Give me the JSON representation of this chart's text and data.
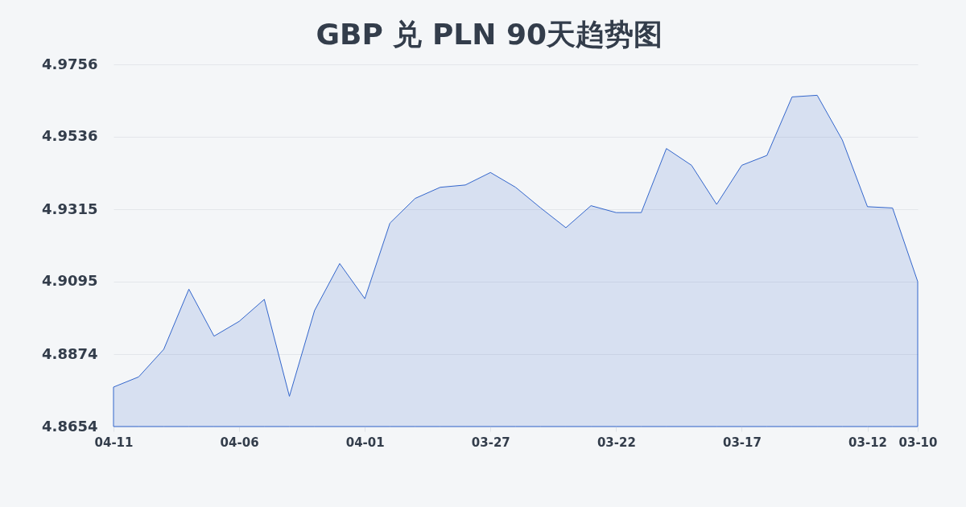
{
  "chart_data": {
    "type": "area",
    "title": "GBP 兑 PLN 90天趋势图",
    "categories": [
      "04-11",
      null,
      null,
      null,
      null,
      "04-06",
      null,
      null,
      null,
      null,
      "04-01",
      null,
      null,
      null,
      null,
      "03-27",
      null,
      null,
      null,
      null,
      "03-22",
      null,
      null,
      null,
      null,
      "03-17",
      null,
      null,
      null,
      null,
      "03-12",
      null,
      "03-10"
    ],
    "series": [
      {
        "color": "#3366cc",
        "values": [
          4.8774,
          4.8805,
          4.8889,
          4.9072,
          4.8929,
          4.8974,
          4.9041,
          4.8746,
          4.9007,
          4.915,
          4.9043,
          4.9273,
          4.9348,
          4.9382,
          4.9389,
          4.9427,
          4.9382,
          4.9319,
          4.9259,
          4.9326,
          4.9305,
          4.9305,
          4.95,
          4.9449,
          4.933,
          4.9449,
          4.9479,
          4.9657,
          4.9662,
          4.9526,
          4.9323,
          4.9319,
          4.9095
        ]
      }
    ],
    "ylim": [
      4.8654,
      4.9756
    ],
    "yticks": [
      4.8654,
      4.8874,
      4.9095,
      4.9315,
      4.9536,
      4.9756
    ],
    "grid": "y"
  }
}
